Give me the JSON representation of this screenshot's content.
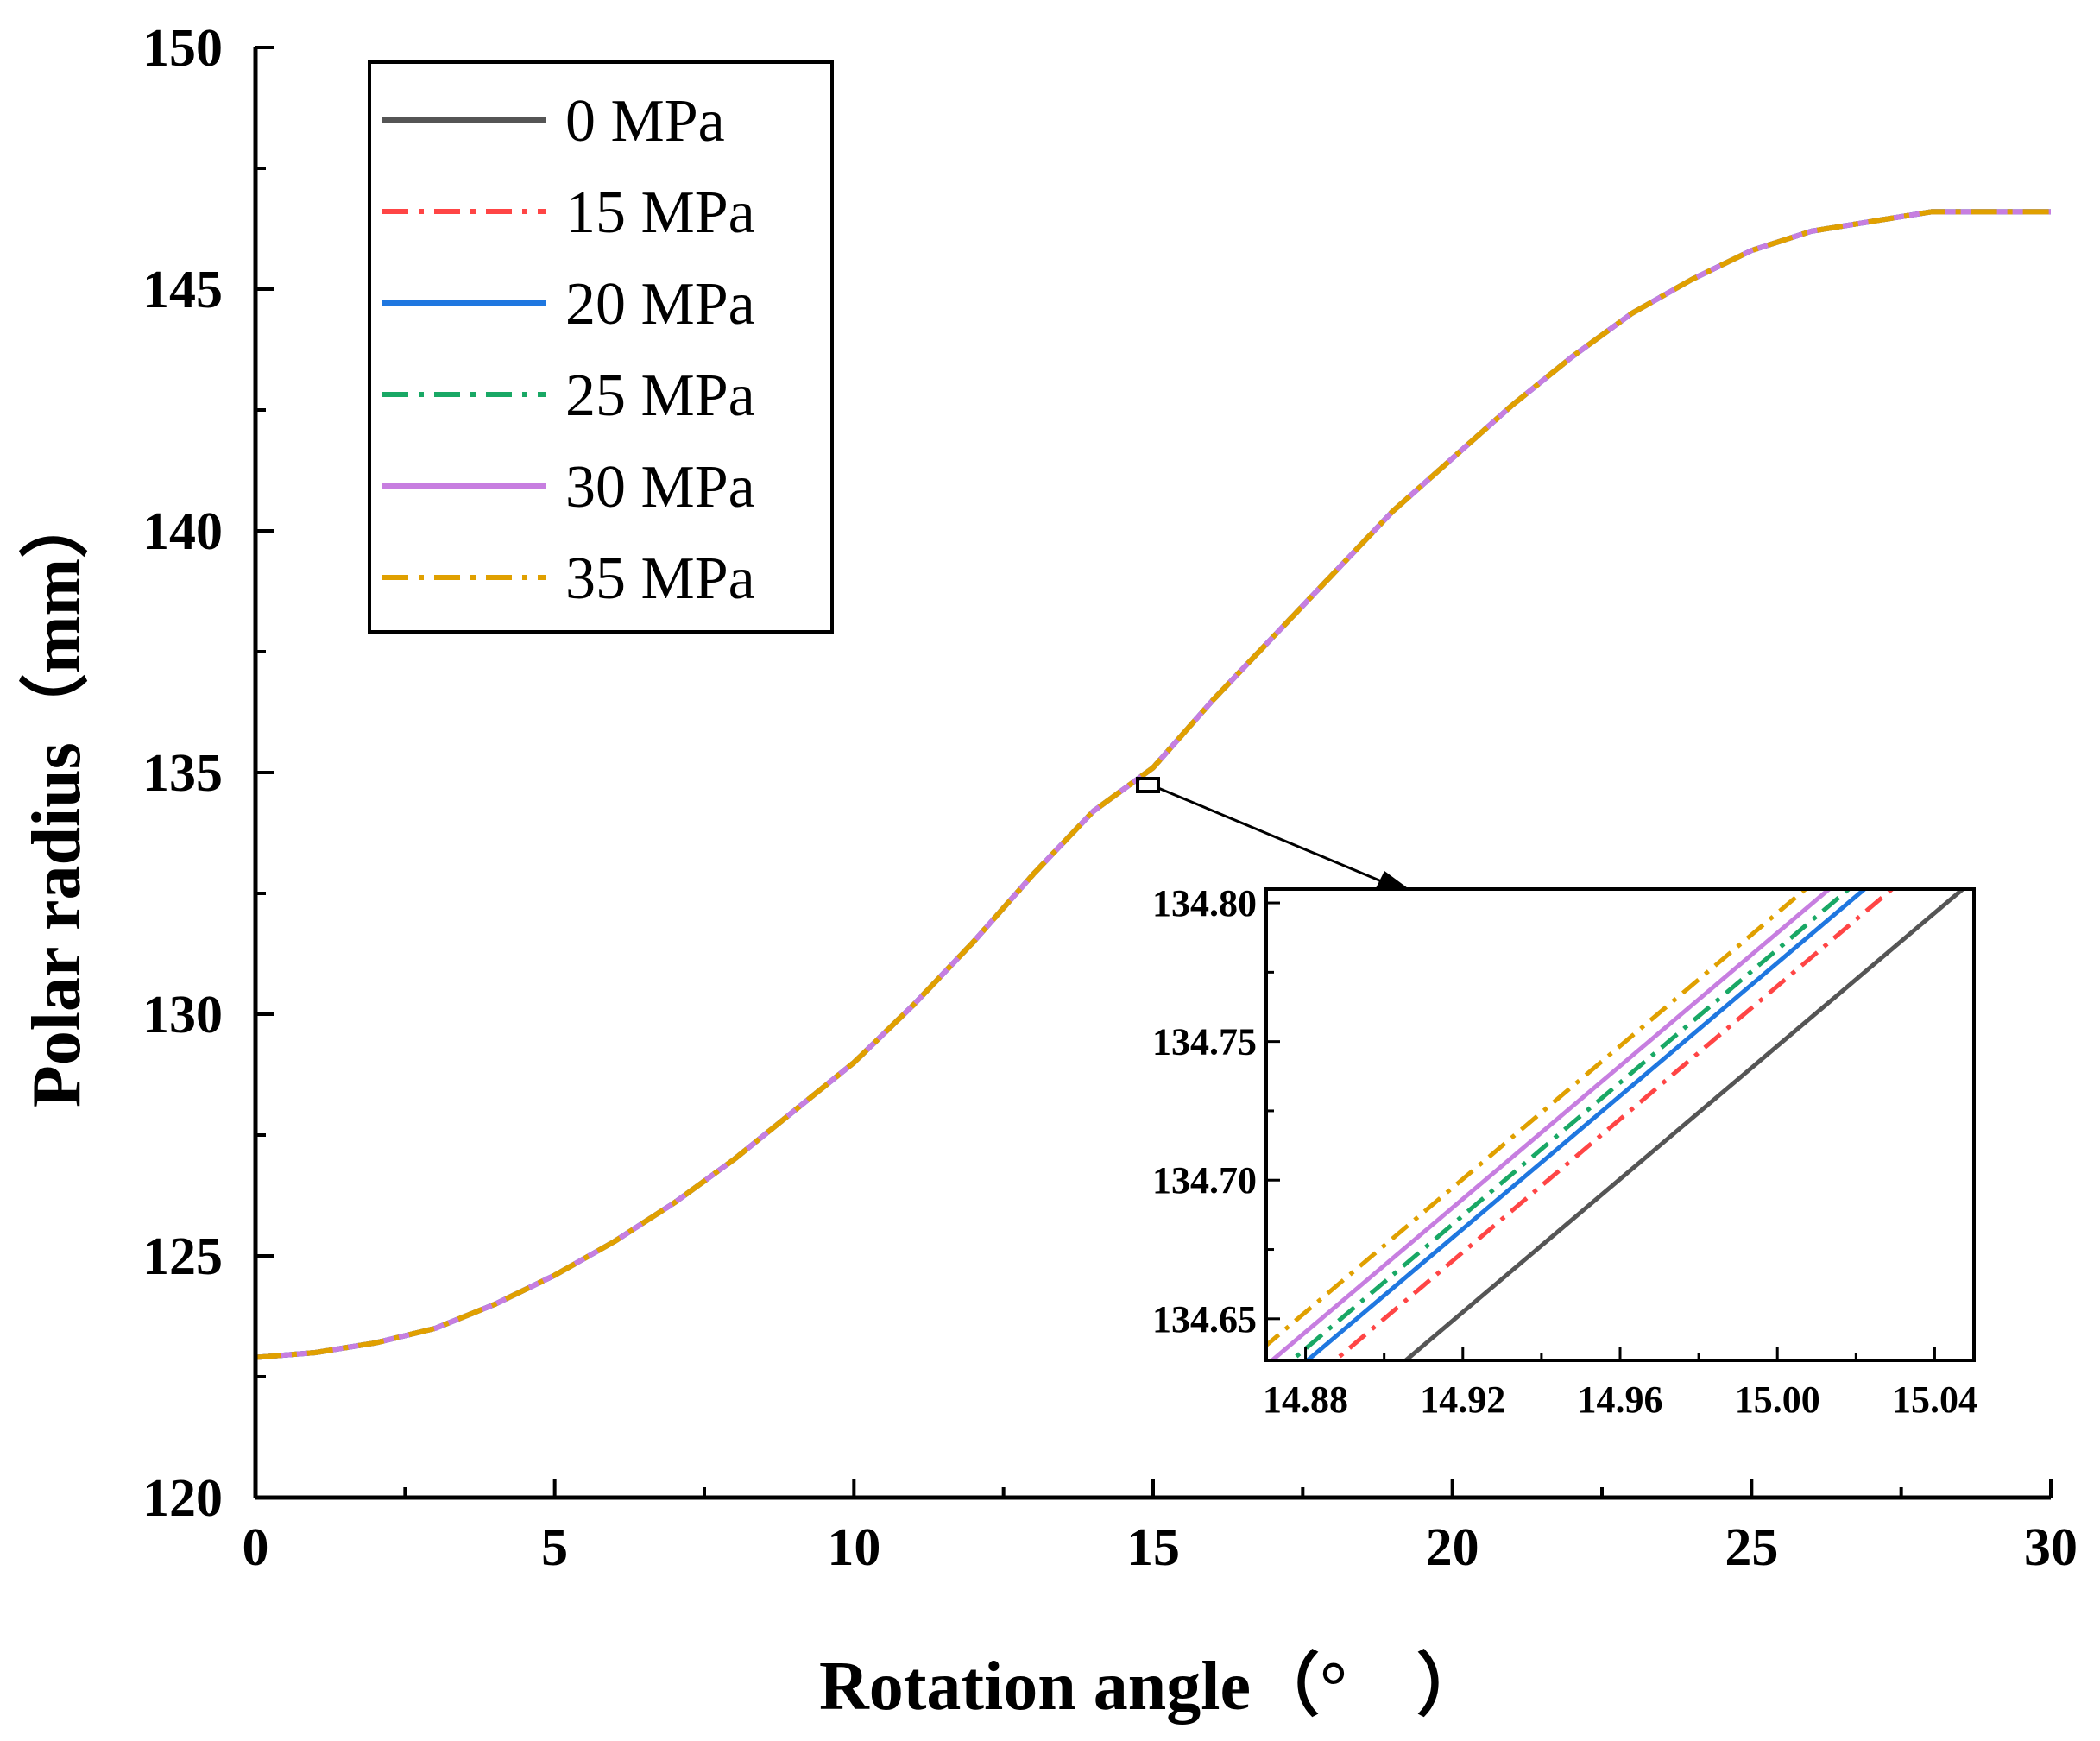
{
  "chart_data": {
    "type": "line",
    "xlabel": "Rotation angle（°　）",
    "ylabel": "Polar radius（mm）",
    "xlim": [
      0,
      30
    ],
    "ylim": [
      120,
      150
    ],
    "xticks": [
      "0",
      "5",
      "10",
      "15",
      "20",
      "25",
      "30"
    ],
    "yticks": [
      "120",
      "125",
      "130",
      "135",
      "140",
      "145",
      "150"
    ],
    "legend_position": "top-left",
    "series": [
      {
        "name": "0 MPa",
        "color": "#555555",
        "style": "solid"
      },
      {
        "name": "15 MPa",
        "color": "#ff4545",
        "style": "dashdot"
      },
      {
        "name": "20 MPa",
        "color": "#1f77e0",
        "style": "solid"
      },
      {
        "name": "25 MPa",
        "color": "#19a865",
        "style": "dashdot"
      },
      {
        "name": "30 MPa",
        "color": "#c77ee0",
        "style": "solid"
      },
      {
        "name": "35 MPa",
        "color": "#e0a000",
        "style": "dashdot"
      }
    ],
    "x": [
      0,
      1,
      2,
      3,
      4,
      5,
      6,
      7,
      8,
      9,
      10,
      11,
      12,
      13,
      14,
      15,
      16,
      17,
      18,
      19,
      20,
      21,
      22,
      23,
      24,
      25,
      26,
      27,
      28,
      29,
      30
    ],
    "y": [
      122.9,
      123.0,
      123.2,
      123.5,
      124.0,
      124.6,
      125.3,
      126.1,
      127.0,
      128.0,
      129.0,
      130.2,
      131.5,
      132.9,
      134.2,
      135.1,
      136.5,
      137.8,
      139.1,
      140.4,
      141.5,
      142.6,
      143.6,
      144.5,
      145.2,
      145.8,
      146.2,
      146.4,
      146.6,
      146.6,
      146.6
    ],
    "inset": {
      "xlim": [
        14.87,
        15.05
      ],
      "ylim": [
        134.635,
        134.805
      ],
      "xticks": [
        "14.88",
        "14.92",
        "14.96",
        "15.00",
        "15.04"
      ],
      "yticks": [
        "134.65",
        "134.70",
        "134.75",
        "134.80"
      ],
      "slope": 1.2,
      "x_at_134_80": [
        15.043,
        15.025,
        15.018,
        15.014,
        15.009,
        15.003
      ]
    }
  }
}
